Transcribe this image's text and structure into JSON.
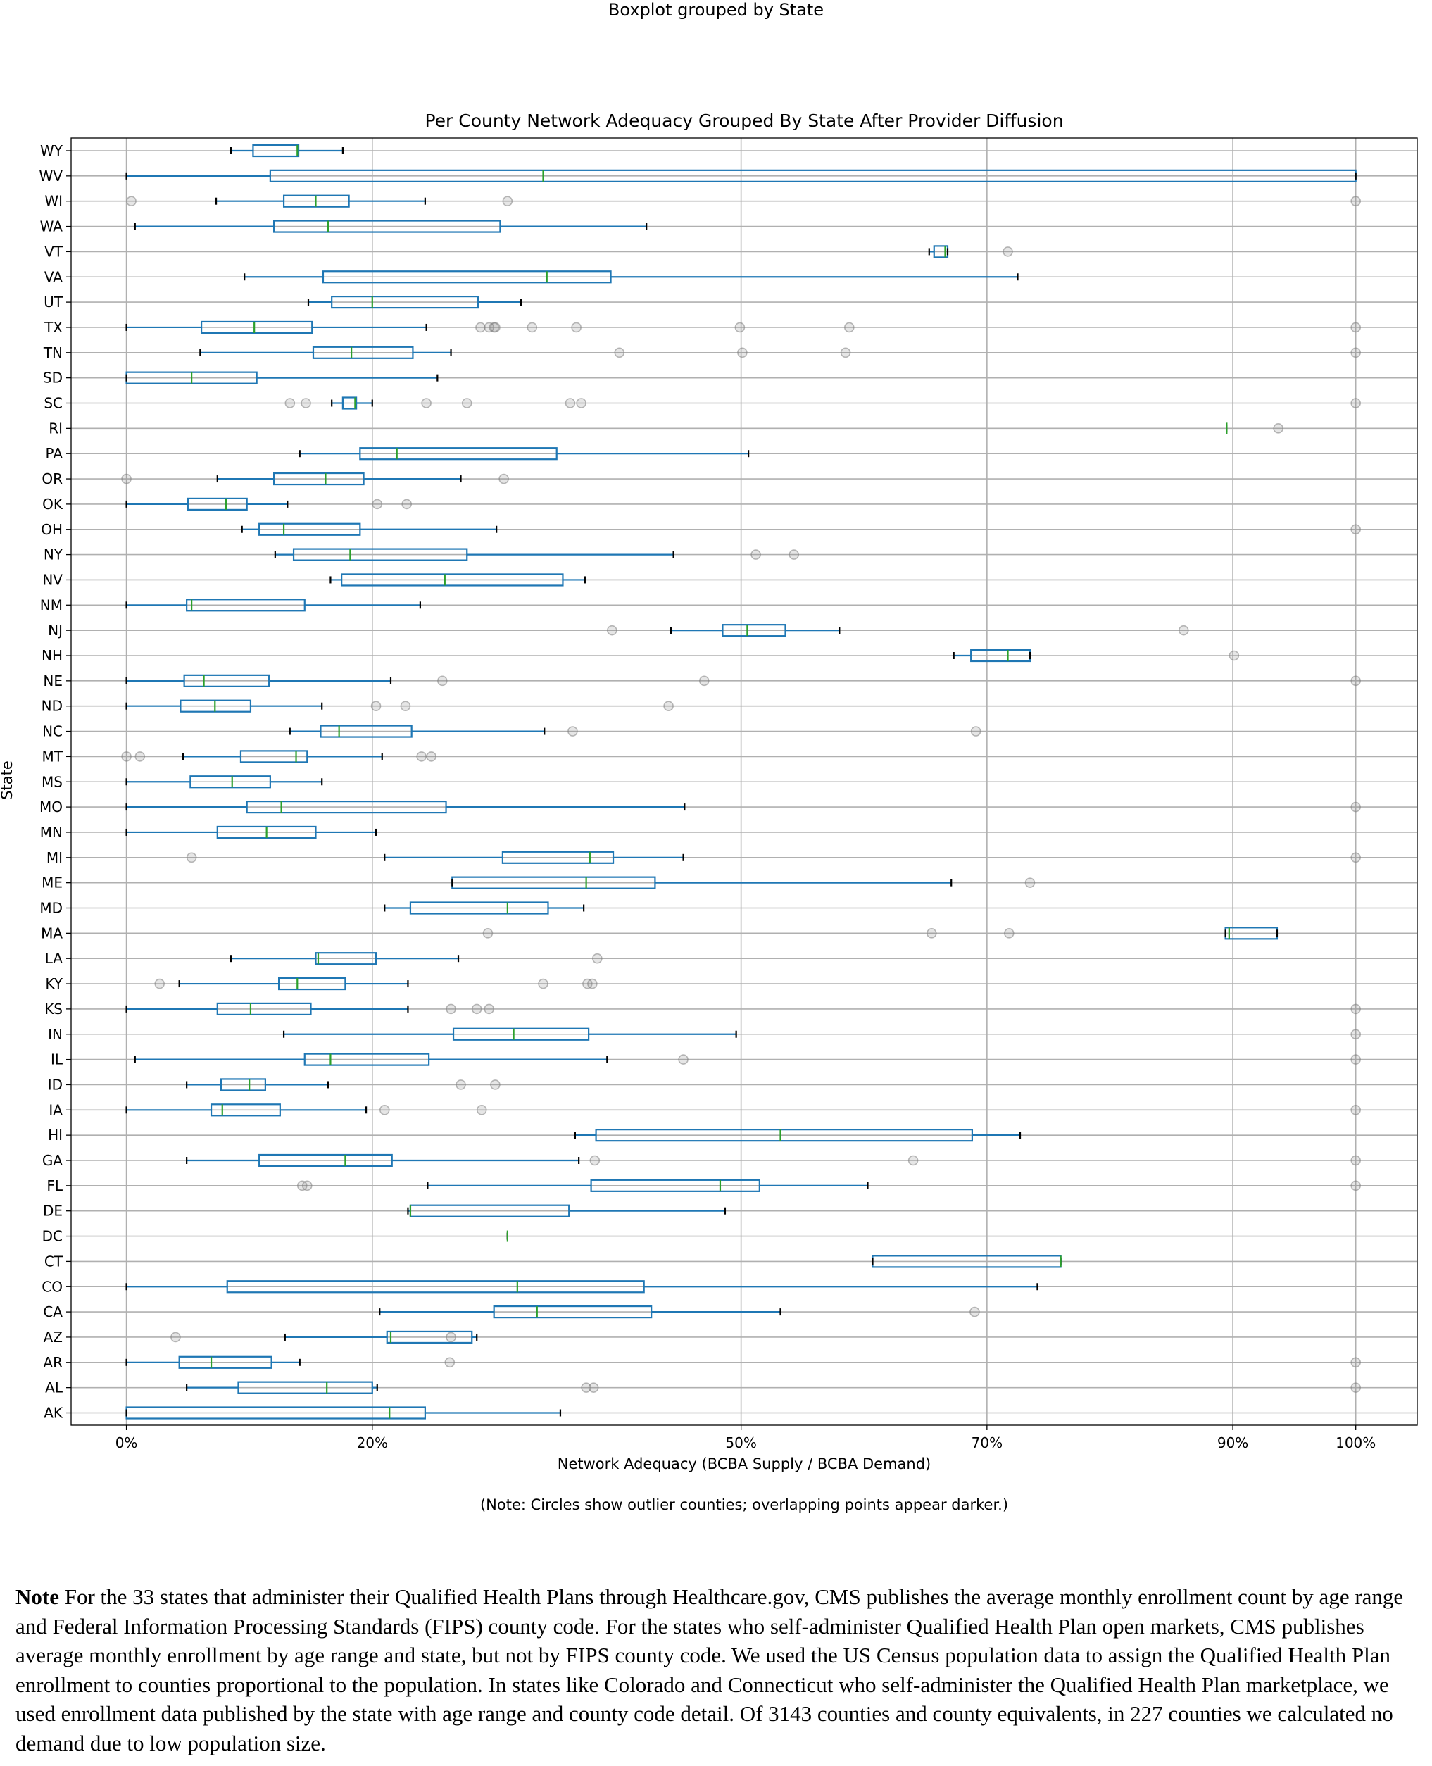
{
  "suptitle": "Boxplot grouped by State",
  "chart_data": {
    "type": "boxplot",
    "orientation": "horizontal",
    "title": "Per County Network Adequacy Grouped By State After Provider Diffusion",
    "xlabel": "Network Adequacy (BCBA Supply / BCBA Demand)",
    "ylabel": "State",
    "x_ticks": [
      {
        "value": 0,
        "label": "0%"
      },
      {
        "value": 20,
        "label": "20%"
      },
      {
        "value": 50,
        "label": "50%"
      },
      {
        "value": 70,
        "label": "70%"
      },
      {
        "value": 90,
        "label": "90%"
      },
      {
        "value": 100,
        "label": "100%"
      }
    ],
    "xlim": [
      -4.5,
      105
    ],
    "grid": true,
    "caption": "(Note: Circles show outlier counties; overlapping points appear darker.)",
    "colors": {
      "box": "#1f77b4",
      "median": "#2ca02c",
      "whisker_cap": "#000000",
      "grid": "#b0b0b0",
      "outlier": "#808080"
    },
    "states": [
      {
        "state": "WY",
        "wlo": 8.5,
        "q1": 10.3,
        "med": 13.9,
        "q3": 14.0,
        "whi": 17.6,
        "outliers": []
      },
      {
        "state": "WV",
        "wlo": 0,
        "q1": 11.7,
        "med": 33.9,
        "q3": 100,
        "whi": 100,
        "outliers": []
      },
      {
        "state": "WI",
        "wlo": 7.3,
        "q1": 12.8,
        "med": 15.4,
        "q3": 18.1,
        "whi": 24.3,
        "outliers": [
          0.4,
          31.0,
          100
        ]
      },
      {
        "state": "WA",
        "wlo": 0.7,
        "q1": 12.0,
        "med": 16.4,
        "q3": 30.4,
        "whi": 42.3,
        "outliers": []
      },
      {
        "state": "VT",
        "wlo": 65.3,
        "q1": 65.7,
        "med": 66.6,
        "q3": 66.8,
        "whi": 66.8,
        "outliers": [
          71.7
        ]
      },
      {
        "state": "VA",
        "wlo": 9.6,
        "q1": 16.0,
        "med": 34.2,
        "q3": 39.4,
        "whi": 72.5,
        "outliers": []
      },
      {
        "state": "UT",
        "wlo": 14.8,
        "q1": 16.7,
        "med": 20.0,
        "q3": 28.6,
        "whi": 32.1,
        "outliers": []
      },
      {
        "state": "TX",
        "wlo": 0,
        "q1": 6.1,
        "med": 10.4,
        "q3": 15.1,
        "whi": 24.4,
        "outliers": [
          28.8,
          29.5,
          29.9,
          30.0,
          33.0,
          36.6,
          49.9,
          58.8,
          100
        ]
      },
      {
        "state": "TN",
        "wlo": 6.0,
        "q1": 15.2,
        "med": 18.3,
        "q3": 23.3,
        "whi": 26.4,
        "outliers": [
          40.1,
          50.1,
          58.5,
          100
        ]
      },
      {
        "state": "SD",
        "wlo": 0,
        "q1": 0,
        "med": 5.3,
        "q3": 10.6,
        "whi": 25.3,
        "outliers": []
      },
      {
        "state": "SC",
        "wlo": 16.7,
        "q1": 17.6,
        "med": 18.6,
        "q3": 18.7,
        "whi": 20.0,
        "outliers": [
          13.3,
          14.6,
          24.4,
          27.7,
          36.1,
          37.0,
          100
        ]
      },
      {
        "state": "RI",
        "wlo": 89.5,
        "q1": 89.5,
        "med": 89.5,
        "q3": 89.5,
        "whi": 89.5,
        "outliers": [
          93.7
        ]
      },
      {
        "state": "PA",
        "wlo": 14.1,
        "q1": 19.0,
        "med": 22.0,
        "q3": 35.0,
        "whi": 50.6,
        "outliers": []
      },
      {
        "state": "OR",
        "wlo": 7.4,
        "q1": 12.0,
        "med": 16.2,
        "q3": 19.3,
        "whi": 27.2,
        "outliers": [
          0,
          30.7
        ]
      },
      {
        "state": "OK",
        "wlo": 0,
        "q1": 5.0,
        "med": 8.1,
        "q3": 9.8,
        "whi": 13.1,
        "outliers": [
          20.4,
          22.8
        ]
      },
      {
        "state": "OH",
        "wlo": 9.4,
        "q1": 10.8,
        "med": 12.8,
        "q3": 19.0,
        "whi": 30.1,
        "outliers": [
          100
        ]
      },
      {
        "state": "NY",
        "wlo": 12.1,
        "q1": 13.6,
        "med": 18.2,
        "q3": 27.7,
        "whi": 44.5,
        "outliers": [
          51.2,
          54.3
        ]
      },
      {
        "state": "NV",
        "wlo": 16.6,
        "q1": 17.5,
        "med": 25.9,
        "q3": 35.5,
        "whi": 37.3,
        "outliers": []
      },
      {
        "state": "NM",
        "wlo": 0,
        "q1": 4.9,
        "med": 5.3,
        "q3": 14.5,
        "whi": 23.9,
        "outliers": []
      },
      {
        "state": "NJ",
        "wlo": 44.3,
        "q1": 48.5,
        "med": 50.5,
        "q3": 53.6,
        "whi": 58.0,
        "outliers": [
          39.5,
          86.0
        ]
      },
      {
        "state": "NH",
        "wlo": 67.3,
        "q1": 68.7,
        "med": 71.7,
        "q3": 73.5,
        "whi": 73.5,
        "outliers": [
          90.1
        ]
      },
      {
        "state": "NE",
        "wlo": 0,
        "q1": 4.7,
        "med": 6.3,
        "q3": 11.6,
        "whi": 21.5,
        "outliers": [
          25.7,
          47.0,
          100
        ]
      },
      {
        "state": "ND",
        "wlo": 0,
        "q1": 4.4,
        "med": 7.2,
        "q3": 10.1,
        "whi": 15.9,
        "outliers": [
          20.3,
          22.7,
          44.1
        ]
      },
      {
        "state": "NC",
        "wlo": 13.3,
        "q1": 15.8,
        "med": 17.3,
        "q3": 23.2,
        "whi": 34.0,
        "outliers": [
          36.3,
          69.1
        ]
      },
      {
        "state": "MT",
        "wlo": 4.6,
        "q1": 9.3,
        "med": 13.8,
        "q3": 14.7,
        "whi": 20.8,
        "outliers": [
          0,
          1.1,
          24.0,
          24.8
        ]
      },
      {
        "state": "MS",
        "wlo": 0,
        "q1": 5.2,
        "med": 8.6,
        "q3": 11.7,
        "whi": 15.9,
        "outliers": []
      },
      {
        "state": "MO",
        "wlo": 0,
        "q1": 9.8,
        "med": 12.6,
        "q3": 26.0,
        "whi": 45.4,
        "outliers": [
          100
        ]
      },
      {
        "state": "MN",
        "wlo": 0,
        "q1": 7.4,
        "med": 11.4,
        "q3": 15.4,
        "whi": 20.3,
        "outliers": []
      },
      {
        "state": "MI",
        "wlo": 21.0,
        "q1": 30.6,
        "med": 37.7,
        "q3": 39.6,
        "whi": 45.3,
        "outliers": [
          5.3,
          100
        ]
      },
      {
        "state": "ME",
        "wlo": 26.5,
        "q1": 26.5,
        "med": 37.4,
        "q3": 43.0,
        "whi": 67.1,
        "outliers": [
          73.5
        ]
      },
      {
        "state": "MD",
        "wlo": 21.0,
        "q1": 23.1,
        "med": 31.0,
        "q3": 34.3,
        "whi": 37.2,
        "outliers": []
      },
      {
        "state": "MA",
        "wlo": 89.4,
        "q1": 89.4,
        "med": 89.7,
        "q3": 93.6,
        "whi": 93.6,
        "outliers": [
          29.4,
          65.5,
          71.8
        ]
      },
      {
        "state": "LA",
        "wlo": 8.5,
        "q1": 15.4,
        "med": 15.6,
        "q3": 20.3,
        "whi": 27.0,
        "outliers": [
          38.3
        ]
      },
      {
        "state": "KY",
        "wlo": 4.3,
        "q1": 12.4,
        "med": 13.9,
        "q3": 17.8,
        "whi": 22.9,
        "outliers": [
          2.7,
          33.9,
          37.5,
          37.9
        ]
      },
      {
        "state": "KS",
        "wlo": 0,
        "q1": 7.4,
        "med": 10.1,
        "q3": 15.0,
        "whi": 22.9,
        "outliers": [
          26.4,
          28.5,
          29.5,
          100
        ]
      },
      {
        "state": "IN",
        "wlo": 12.8,
        "q1": 26.6,
        "med": 31.5,
        "q3": 37.6,
        "whi": 49.6,
        "outliers": [
          100
        ]
      },
      {
        "state": "IL",
        "wlo": 0.7,
        "q1": 14.5,
        "med": 16.6,
        "q3": 24.6,
        "whi": 39.1,
        "outliers": [
          45.3,
          100
        ]
      },
      {
        "state": "ID",
        "wlo": 4.9,
        "q1": 7.7,
        "med": 10.0,
        "q3": 11.3,
        "whi": 16.4,
        "outliers": [
          27.2,
          30.0
        ]
      },
      {
        "state": "IA",
        "wlo": 0,
        "q1": 6.9,
        "med": 7.8,
        "q3": 12.5,
        "whi": 19.5,
        "outliers": [
          21.0,
          28.9,
          100
        ]
      },
      {
        "state": "HI",
        "wlo": 36.5,
        "q1": 38.2,
        "med": 53.2,
        "q3": 68.8,
        "whi": 72.7,
        "outliers": []
      },
      {
        "state": "GA",
        "wlo": 4.9,
        "q1": 10.8,
        "med": 17.8,
        "q3": 21.6,
        "whi": 36.8,
        "outliers": [
          38.1,
          64.0,
          100
        ]
      },
      {
        "state": "FL",
        "wlo": 24.5,
        "q1": 37.8,
        "med": 48.3,
        "q3": 51.5,
        "whi": 60.3,
        "outliers": [
          14.3,
          14.7,
          100
        ]
      },
      {
        "state": "DE",
        "wlo": 22.9,
        "q1": 23.1,
        "med": 23.1,
        "q3": 36.0,
        "whi": 48.7,
        "outliers": []
      },
      {
        "state": "DC",
        "wlo": 31.0,
        "q1": 31.0,
        "med": 31.0,
        "q3": 31.0,
        "whi": 31.0,
        "outliers": []
      },
      {
        "state": "CT",
        "wlo": 60.7,
        "q1": 60.7,
        "med": 76.0,
        "q3": 76.0,
        "whi": 76.0,
        "outliers": []
      },
      {
        "state": "CO",
        "wlo": 0,
        "q1": 8.2,
        "med": 31.8,
        "q3": 42.1,
        "whi": 74.1,
        "outliers": []
      },
      {
        "state": "CA",
        "wlo": 20.6,
        "q1": 29.9,
        "med": 33.4,
        "q3": 42.7,
        "whi": 53.2,
        "outliers": [
          69.0
        ]
      },
      {
        "state": "AZ",
        "wlo": 12.9,
        "q1": 21.2,
        "med": 21.5,
        "q3": 28.1,
        "whi": 28.5,
        "outliers": [
          4.0,
          26.4
        ]
      },
      {
        "state": "AR",
        "wlo": 0,
        "q1": 4.3,
        "med": 6.9,
        "q3": 11.8,
        "whi": 14.1,
        "outliers": [
          26.3,
          100
        ]
      },
      {
        "state": "AL",
        "wlo": 4.9,
        "q1": 9.1,
        "med": 16.3,
        "q3": 20.0,
        "whi": 20.4,
        "outliers": [
          37.4,
          38.0,
          100
        ]
      },
      {
        "state": "AK",
        "wlo": 0,
        "q1": 0,
        "med": 21.4,
        "q3": 24.3,
        "whi": 35.3,
        "outliers": []
      }
    ]
  },
  "note": {
    "bold": "Note",
    "text": " For the 33 states that administer their Qualified Health Plans through Healthcare.gov, CMS publishes the average monthly enrollment count by age range and Federal Information Processing Standards (FIPS) county code. For the states who self-administer Qualified Health Plan open markets, CMS publishes average monthly enrollment by age range and state, but not by FIPS county code. We used the US Census population data to assign the Qualified Health Plan enrollment to counties proportional to the population. In states like Colorado and Connecticut who self-administer the Qualified Health Plan marketplace, we used enrollment data published by the state with age range and county code detail. Of 3143 counties and county equivalents, in 227 counties we calculated no demand due to low population size."
  }
}
